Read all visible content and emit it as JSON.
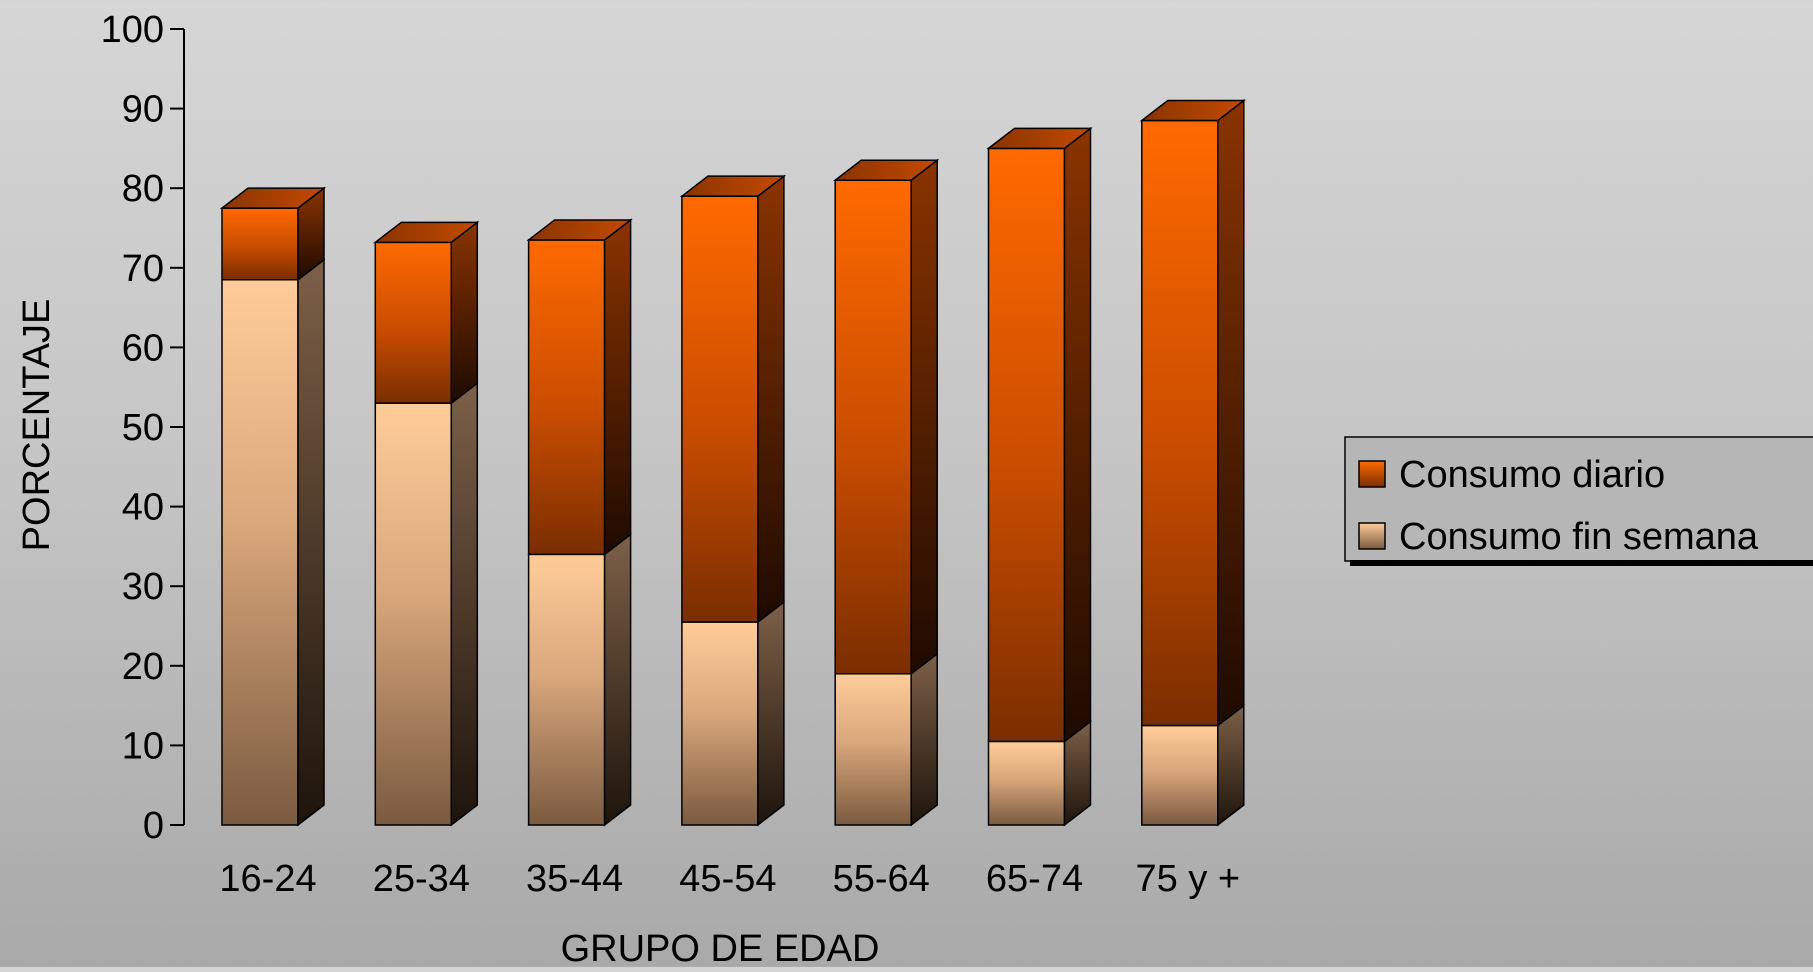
{
  "chart_data": {
    "type": "bar",
    "stacked": true,
    "three_d": true,
    "title": "",
    "xlabel": "GRUPO DE EDAD",
    "ylabel": "PORCENTAJE",
    "ylim": [
      0,
      100
    ],
    "yticks": [
      0,
      10,
      20,
      30,
      40,
      50,
      60,
      70,
      80,
      90,
      100
    ],
    "grid": false,
    "legend_position": "right",
    "categories": [
      "16-24",
      "25-34",
      "35-44",
      "45-54",
      "55-64",
      "65-74",
      "75 y +"
    ],
    "series": [
      {
        "name": "Consumo fin semana",
        "values": [
          68.5,
          53,
          34,
          25.5,
          19,
          10.5,
          12.5
        ],
        "color": "#ffcc99"
      },
      {
        "name": "Consumo diario",
        "values": [
          9,
          20.2,
          39.5,
          53.5,
          62,
          74.5,
          76
        ],
        "color": "#ff6600"
      }
    ],
    "legend_order": [
      "Consumo diario",
      "Consumo fin semana"
    ]
  },
  "colors": {
    "daily_front_top": "#ff6600",
    "daily_front_bottom": "#7a2e00",
    "daily_side": "#3a1400",
    "weekend_front_top": "#ffcc99",
    "weekend_front_bottom": "#7a5a40",
    "weekend_side": "#4a3626"
  }
}
